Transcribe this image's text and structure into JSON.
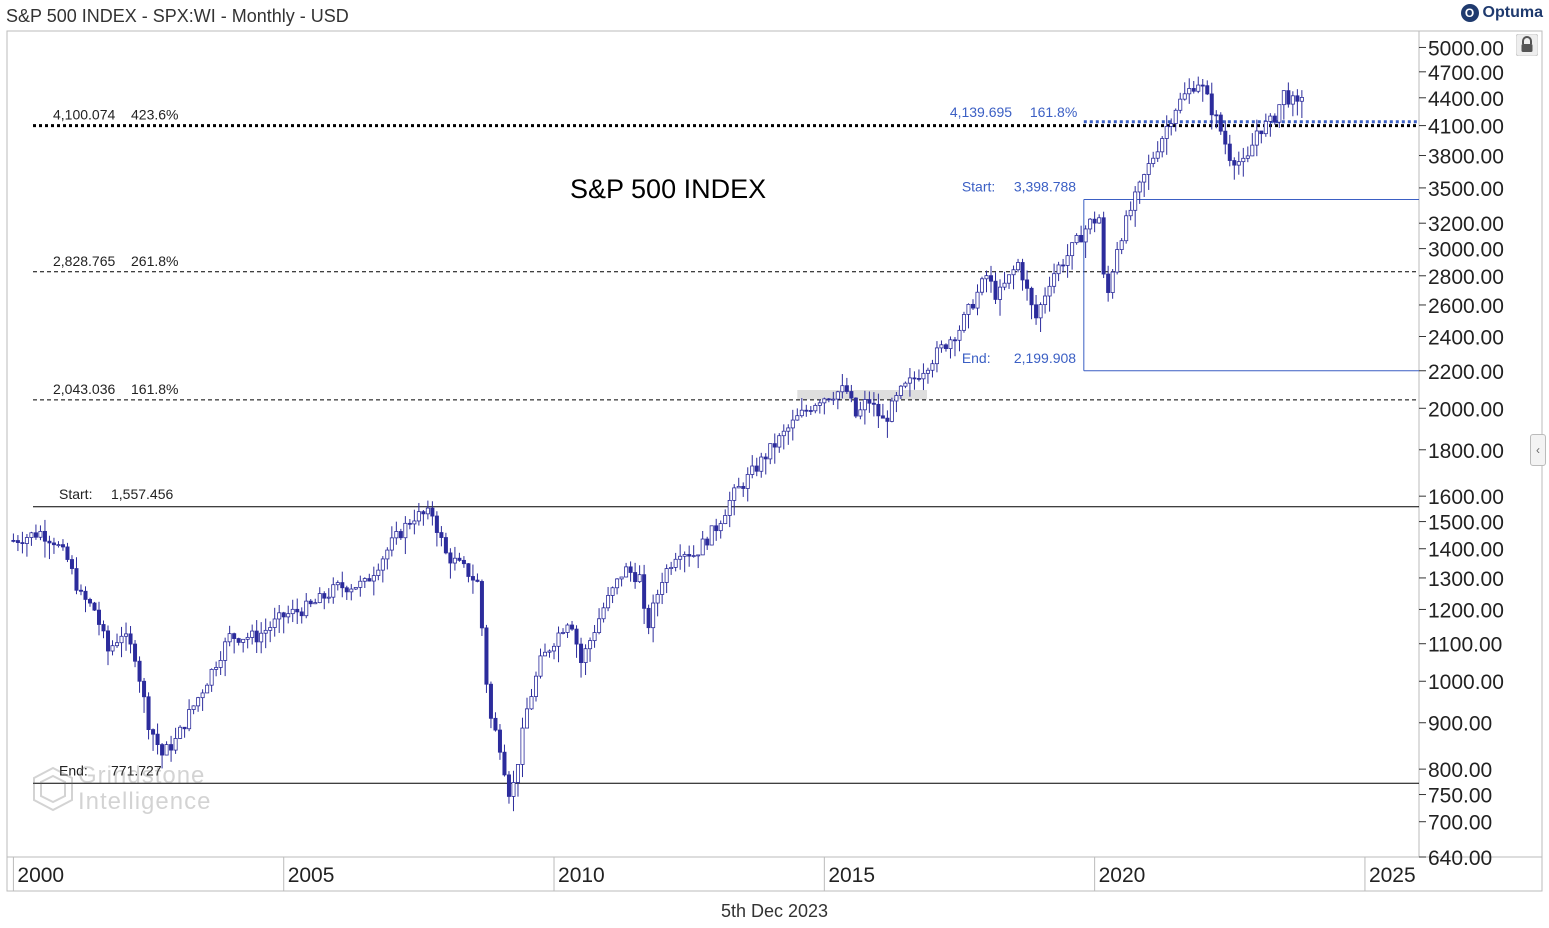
{
  "header": {
    "title": "S&P 500 INDEX - SPX:WI - Monthly - USD",
    "brand": "Optuma"
  },
  "footer": {
    "date": "5th Dec 2023"
  },
  "watermark": {
    "line1": "Grindstone",
    "line2": "Intelligence"
  },
  "colors": {
    "candle": "#2c2c9c",
    "blue_annotation": "#3b5fc4",
    "black_line": "#000000",
    "grid_text": "#222222"
  },
  "chart_data": {
    "type": "candlestick",
    "title": "S&P 500 INDEX",
    "y_scale": "log",
    "ylim": [
      640,
      5200
    ],
    "xlim": [
      1999.9,
      2026.0
    ],
    "y_ticks": [
      "5000.00",
      "4700.00",
      "4400.00",
      "4100.00",
      "3800.00",
      "3500.00",
      "3200.00",
      "3000.00",
      "2800.00",
      "2600.00",
      "2400.00",
      "2200.00",
      "2000.00",
      "1800.00",
      "1600.00",
      "1500.00",
      "1400.00",
      "1300.00",
      "1200.00",
      "1100.00",
      "1000.00",
      "900.00",
      "800.00",
      "750.00",
      "700.00",
      "640.00"
    ],
    "x_ticks": [
      "2000",
      "2005",
      "2010",
      "2015",
      "2020",
      "2025"
    ],
    "horizontal_levels": [
      {
        "value": 4100.074,
        "label_value": "4,100.074",
        "label_pct": "423.6%",
        "style": "dotted-heavy",
        "color": "black"
      },
      {
        "value": 2828.765,
        "label_value": "2,828.765",
        "label_pct": "261.8%",
        "style": "dashed",
        "color": "black"
      },
      {
        "value": 2043.036,
        "label_value": "2,043.036",
        "label_pct": "161.8%",
        "style": "dashed",
        "color": "black"
      },
      {
        "value": 1557.456,
        "label_name": "Start:",
        "label_value": "1,557.456",
        "style": "solid",
        "color": "black"
      },
      {
        "value": 771.727,
        "label_name": "End:",
        "label_value": "771.727",
        "style": "solid",
        "color": "black"
      },
      {
        "value": 4139.695,
        "label_value": "4,139.695",
        "label_pct": "161.8%",
        "style": "dotted-heavy",
        "color": "blue",
        "from": 2019.8
      },
      {
        "value": 3398.788,
        "label_name": "Start:",
        "label_value": "3,398.788",
        "style": "solid",
        "color": "blue",
        "from": 2019.8
      },
      {
        "value": 2199.908,
        "label_name": "End:",
        "label_value": "2,199.908",
        "style": "solid",
        "color": "blue",
        "from": 2019.8
      }
    ],
    "series": [
      {
        "name": "",
        "points": [
          [
            2000.0,
            1430
          ],
          [
            2000.5,
            1460
          ],
          [
            2000.75,
            1430
          ],
          [
            2001.0,
            1360
          ],
          [
            2001.25,
            1240
          ],
          [
            2001.5,
            1200
          ],
          [
            2001.75,
            1080
          ],
          [
            2002.0,
            1130
          ],
          [
            2002.25,
            1070
          ],
          [
            2002.5,
            900
          ],
          [
            2002.75,
            830
          ],
          [
            2003.0,
            860
          ],
          [
            2003.25,
            920
          ],
          [
            2003.5,
            980
          ],
          [
            2003.75,
            1050
          ],
          [
            2004.0,
            1120
          ],
          [
            2004.5,
            1120
          ],
          [
            2005.0,
            1180
          ],
          [
            2005.5,
            1210
          ],
          [
            2006.0,
            1270
          ],
          [
            2006.5,
            1280
          ],
          [
            2007.0,
            1420
          ],
          [
            2007.4,
            1520
          ],
          [
            2007.75,
            1530
          ],
          [
            2008.0,
            1380
          ],
          [
            2008.4,
            1320
          ],
          [
            2008.6,
            1280
          ],
          [
            2008.8,
            920
          ],
          [
            2009.0,
            850
          ],
          [
            2009.2,
            740
          ],
          [
            2009.5,
            930
          ],
          [
            2009.75,
            1050
          ],
          [
            2010.0,
            1110
          ],
          [
            2010.3,
            1180
          ],
          [
            2010.5,
            1050
          ],
          [
            2010.9,
            1200
          ],
          [
            2011.3,
            1330
          ],
          [
            2011.6,
            1300
          ],
          [
            2011.7,
            1130
          ],
          [
            2012.0,
            1300
          ],
          [
            2012.3,
            1400
          ],
          [
            2012.6,
            1380
          ],
          [
            2013.0,
            1480
          ],
          [
            2013.3,
            1600
          ],
          [
            2013.6,
            1680
          ],
          [
            2014.0,
            1800
          ],
          [
            2014.5,
            1950
          ],
          [
            2014.9,
            2050
          ],
          [
            2015.4,
            2100
          ],
          [
            2015.6,
            1950
          ],
          [
            2015.8,
            2050
          ],
          [
            2016.1,
            1930
          ],
          [
            2016.4,
            2080
          ],
          [
            2016.7,
            2170
          ],
          [
            2017.0,
            2270
          ],
          [
            2017.5,
            2450
          ],
          [
            2018.0,
            2800
          ],
          [
            2018.2,
            2650
          ],
          [
            2018.6,
            2900
          ],
          [
            2018.9,
            2500
          ],
          [
            2019.2,
            2800
          ],
          [
            2019.5,
            2950
          ],
          [
            2019.9,
            3200
          ],
          [
            2020.1,
            3250
          ],
          [
            2020.2,
            2580
          ],
          [
            2020.4,
            3000
          ],
          [
            2020.7,
            3350
          ],
          [
            2021.0,
            3700
          ],
          [
            2021.5,
            4300
          ],
          [
            2021.9,
            4600
          ],
          [
            2022.0,
            4500
          ],
          [
            2022.3,
            4100
          ],
          [
            2022.5,
            3800
          ],
          [
            2022.8,
            3700
          ],
          [
            2023.0,
            4050
          ],
          [
            2023.3,
            4150
          ],
          [
            2023.5,
            4450
          ],
          [
            2023.75,
            4300
          ],
          [
            2023.9,
            4560
          ]
        ]
      }
    ]
  }
}
